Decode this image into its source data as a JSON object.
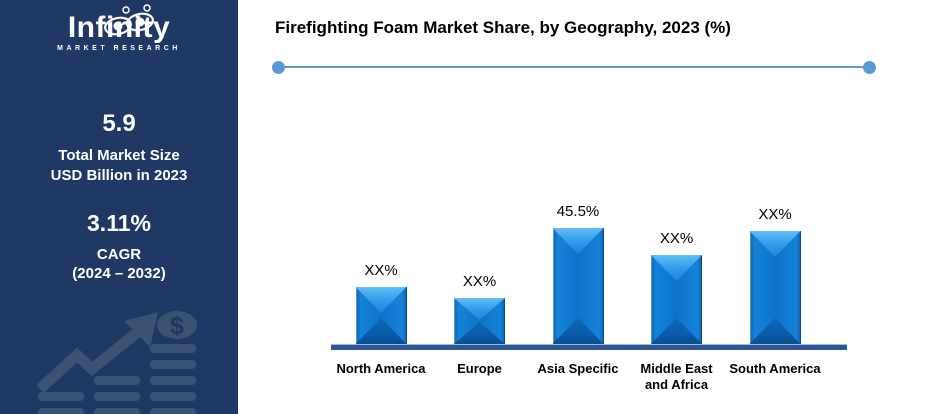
{
  "sidebar": {
    "bg_color": "#1F3864",
    "logo": {
      "name": "Infinity",
      "subtitle": "MARKET RESEARCH"
    },
    "stats": [
      {
        "value": "5.9",
        "line1": "Total Market Size",
        "line2": "USD Billion in 2023"
      },
      {
        "value": "3.11%",
        "line1": "CAGR",
        "line2": "(2024 – 2032)"
      }
    ],
    "watermark": {
      "dollar_symbol": "$",
      "color": "#3A5274"
    }
  },
  "header": {
    "title": "Firefighting Foam Market Share, by Geography, 2023 (%)",
    "divider_color": "#5B9BD5"
  },
  "chart_data": {
    "type": "bar",
    "title": "Firefighting Foam Market Share, by Geography, 2023 (%)",
    "categories": [
      "North America",
      "Europe",
      "Asia Specific",
      "Middle East and Africa",
      "South America"
    ],
    "category_lines": [
      [
        "North America"
      ],
      [
        "Europe"
      ],
      [
        "Asia Specific"
      ],
      [
        "Middle East",
        "and Africa"
      ],
      [
        "South America"
      ]
    ],
    "value_labels": [
      "XX%",
      "XX%",
      "45.5%",
      "XX%",
      "XX%"
    ],
    "values_estimated_pct": [
      22.5,
      18,
      45.5,
      35,
      44.5
    ],
    "known_values": {
      "Asia Specific": 45.5
    },
    "xlabel": "",
    "ylabel": "",
    "value_axis_visible": false,
    "grid": false,
    "legend": "none",
    "bar_color_face": "#0D74C8",
    "bar_color_top_bevel": "#47ADF2",
    "bar_color_bottom_bevel": "#0A5CA8",
    "axis_line_color": "#2E5595"
  }
}
